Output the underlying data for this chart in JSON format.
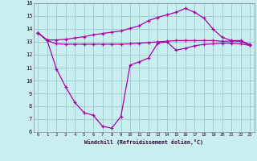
{
  "xlabel": "Windchill (Refroidissement éolien,°C)",
  "bg_color": "#c8eef0",
  "grid_color": "#9ec9cb",
  "line_color": "#aa00aa",
  "xlim": [
    -0.5,
    23.5
  ],
  "ylim": [
    6,
    16
  ],
  "xticks": [
    0,
    1,
    2,
    3,
    4,
    5,
    6,
    7,
    8,
    9,
    10,
    11,
    12,
    13,
    14,
    15,
    16,
    17,
    18,
    19,
    20,
    21,
    22,
    23
  ],
  "yticks": [
    6,
    7,
    8,
    9,
    10,
    11,
    12,
    13,
    14,
    15,
    16
  ],
  "line1_x": [
    0,
    1,
    2,
    3,
    4,
    5,
    6,
    7,
    8,
    9,
    10,
    11,
    12,
    13,
    14,
    15,
    16,
    17,
    18,
    19,
    20,
    21,
    22,
    23
  ],
  "line1_y": [
    13.7,
    13.15,
    13.15,
    13.2,
    13.3,
    13.4,
    13.55,
    13.65,
    13.75,
    13.85,
    14.05,
    14.25,
    14.65,
    14.9,
    15.1,
    15.3,
    15.6,
    15.3,
    14.85,
    14.0,
    13.35,
    13.1,
    13.1,
    12.8
  ],
  "line2_x": [
    0,
    1,
    2,
    3,
    4,
    5,
    6,
    7,
    8,
    9,
    10,
    11,
    12,
    13,
    14,
    15,
    16,
    17,
    18,
    19,
    20,
    21,
    22,
    23
  ],
  "line2_y": [
    13.7,
    13.1,
    12.85,
    12.82,
    12.82,
    12.82,
    12.82,
    12.82,
    12.82,
    12.82,
    12.85,
    12.9,
    12.95,
    13.0,
    13.05,
    13.1,
    13.1,
    13.1,
    13.1,
    13.1,
    13.05,
    13.05,
    13.05,
    12.75
  ],
  "line3_x": [
    0,
    1,
    2,
    3,
    4,
    5,
    6,
    7,
    8,
    9,
    10,
    11,
    12,
    13,
    14,
    15,
    16,
    17,
    18,
    19,
    20,
    21,
    22,
    23
  ],
  "line3_y": [
    13.7,
    13.1,
    10.9,
    9.5,
    8.3,
    7.5,
    7.3,
    6.45,
    6.3,
    7.2,
    11.2,
    11.45,
    11.75,
    12.9,
    13.0,
    12.35,
    12.5,
    12.7,
    12.8,
    12.85,
    12.9,
    12.9,
    12.85,
    12.72
  ]
}
